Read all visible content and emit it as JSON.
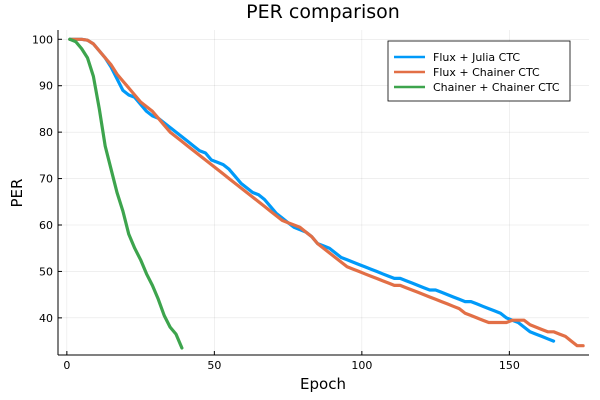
{
  "chart_data": {
    "type": "line",
    "title": "PER comparison",
    "xlabel": "Epoch",
    "ylabel": "PER",
    "xlim": [
      -3,
      177
    ],
    "ylim": [
      32,
      102
    ],
    "xticks": [
      0,
      50,
      100,
      150
    ],
    "yticks": [
      40,
      50,
      60,
      70,
      80,
      90,
      100
    ],
    "grid": true,
    "legend_position": "top-right",
    "series": [
      {
        "name": "Flux + Julia CTC",
        "color": "#009af9",
        "x": [
          1,
          3,
          5,
          7,
          9,
          11,
          13,
          15,
          17,
          19,
          21,
          23,
          25,
          27,
          29,
          31,
          33,
          35,
          37,
          39,
          41,
          43,
          45,
          47,
          49,
          51,
          53,
          55,
          57,
          59,
          61,
          63,
          65,
          67,
          69,
          71,
          73,
          75,
          77,
          79,
          81,
          83,
          85,
          87,
          89,
          91,
          93,
          95,
          97,
          99,
          101,
          103,
          105,
          107,
          109,
          111,
          113,
          115,
          117,
          119,
          121,
          123,
          125,
          127,
          129,
          131,
          133,
          135,
          137,
          139,
          141,
          143,
          145,
          147,
          149,
          151,
          153,
          155,
          157,
          159,
          161,
          163,
          165
        ],
        "y": [
          100,
          100,
          100,
          99.8,
          99,
          97.5,
          96,
          94,
          91.5,
          89,
          88,
          87.5,
          86,
          84.5,
          83.5,
          83,
          82,
          81,
          80,
          79,
          78,
          77,
          76,
          75.5,
          74,
          73.5,
          73,
          72,
          70.5,
          69,
          68,
          67,
          66.5,
          65.5,
          64,
          62.5,
          61.5,
          60.5,
          59.5,
          59,
          58.5,
          57.5,
          56,
          55.5,
          55,
          54,
          53,
          52.5,
          52,
          51.5,
          51,
          50.5,
          50,
          49.5,
          49,
          48.5,
          48.5,
          48,
          47.5,
          47,
          46.5,
          46,
          46,
          45.5,
          45,
          44.5,
          44,
          43.5,
          43.5,
          43,
          42.5,
          42,
          41.5,
          41,
          40,
          39.5,
          39,
          38,
          37,
          36.5,
          36,
          35.5,
          35
        ]
      },
      {
        "name": "Flux + Chainer CTC",
        "color": "#e26f46",
        "x": [
          1,
          3,
          5,
          7,
          9,
          11,
          13,
          15,
          17,
          19,
          21,
          23,
          25,
          27,
          29,
          31,
          33,
          35,
          37,
          39,
          41,
          43,
          45,
          47,
          49,
          51,
          53,
          55,
          57,
          59,
          61,
          63,
          65,
          67,
          69,
          71,
          73,
          75,
          77,
          79,
          81,
          83,
          85,
          87,
          89,
          91,
          93,
          95,
          97,
          99,
          101,
          103,
          105,
          107,
          109,
          111,
          113,
          115,
          117,
          119,
          121,
          123,
          125,
          127,
          129,
          131,
          133,
          135,
          137,
          139,
          141,
          143,
          145,
          147,
          149,
          151,
          153,
          155,
          157,
          159,
          161,
          163,
          165,
          167,
          169,
          171,
          173,
          175
        ],
        "y": [
          100,
          100,
          100,
          99.8,
          99,
          97.5,
          96,
          94.5,
          92.5,
          91,
          89.5,
          88,
          86.5,
          85.5,
          84.5,
          83,
          81.5,
          80,
          79,
          78,
          77,
          76,
          75,
          74,
          73,
          72,
          71,
          70,
          69,
          68,
          67,
          66,
          65,
          64,
          63,
          62,
          61,
          60.5,
          60,
          59.5,
          58.5,
          57.5,
          56,
          55,
          54,
          53,
          52,
          51,
          50.5,
          50,
          49.5,
          49,
          48.5,
          48,
          47.5,
          47,
          47,
          46.5,
          46,
          45.5,
          45,
          44.5,
          44,
          43.5,
          43,
          42.5,
          42,
          41,
          40.5,
          40,
          39.5,
          39,
          39,
          39,
          39,
          39.5,
          39.5,
          39.5,
          38.5,
          38,
          37.5,
          37,
          37,
          36.5,
          36,
          35,
          34,
          34
        ]
      },
      {
        "name": "Chainer + Chainer CTC",
        "color": "#3da44d",
        "x": [
          1,
          3,
          5,
          7,
          9,
          11,
          13,
          15,
          17,
          19,
          21,
          23,
          25,
          27,
          29,
          31,
          33,
          35,
          37,
          39
        ],
        "y": [
          100,
          99.5,
          98,
          96,
          92,
          85,
          77,
          72,
          67,
          63,
          58,
          55,
          52.5,
          49.5,
          47,
          44,
          40.5,
          38,
          36.5,
          33.5
        ]
      }
    ]
  }
}
